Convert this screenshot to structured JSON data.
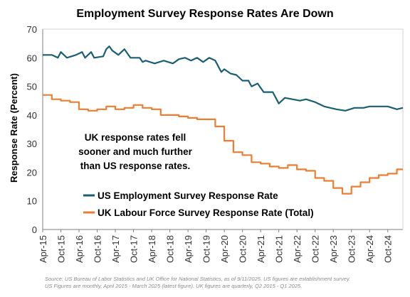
{
  "chart_data": {
    "type": "line",
    "title": "Employment Survey Response Rates Are Down",
    "ylabel": "Response Rate (Percent)",
    "xlabel": "",
    "ylim": [
      0,
      70
    ],
    "yticks": [
      0,
      10,
      20,
      30,
      40,
      50,
      60,
      70
    ],
    "grid": false,
    "x_tick_labels": [
      "Apr-15",
      "Oct-15",
      "Apr-16",
      "Oct-16",
      "Apr-17",
      "Oct-17",
      "Apr-18",
      "Oct-18",
      "Apr-19",
      "Oct-19",
      "Apr-20",
      "Oct-20",
      "Apr-21",
      "Oct-21",
      "Apr-22",
      "Oct-22",
      "Apr-23",
      "Oct-23",
      "Apr-24",
      "Oct-24"
    ],
    "annotation": [
      "UK response rates fell",
      "sooner and much further",
      "than US response rates."
    ],
    "legend": {
      "placement": "bottom-center"
    },
    "series": [
      {
        "name": "US Employment Survey Response Rate",
        "color": "#1b5f73",
        "line_style": "line",
        "points": [
          [
            "2015-04",
            61
          ],
          [
            "2015-07",
            61
          ],
          [
            "2015-09",
            60
          ],
          [
            "2015-10",
            62
          ],
          [
            "2015-12",
            60
          ],
          [
            "2016-03",
            61
          ],
          [
            "2016-05",
            62
          ],
          [
            "2016-06",
            60
          ],
          [
            "2016-08",
            62
          ],
          [
            "2016-09",
            60
          ],
          [
            "2016-12",
            60.5
          ],
          [
            "2017-01",
            63
          ],
          [
            "2017-02",
            64
          ],
          [
            "2017-03",
            62.5
          ],
          [
            "2017-05",
            61
          ],
          [
            "2017-07",
            63
          ],
          [
            "2017-09",
            60
          ],
          [
            "2017-12",
            60
          ],
          [
            "2018-01",
            58.5
          ],
          [
            "2018-02",
            59
          ],
          [
            "2018-05",
            58
          ],
          [
            "2018-08",
            59
          ],
          [
            "2018-11",
            58
          ],
          [
            "2019-01",
            59.5
          ],
          [
            "2019-03",
            60
          ],
          [
            "2019-05",
            59
          ],
          [
            "2019-07",
            60
          ],
          [
            "2019-09",
            58.5
          ],
          [
            "2019-11",
            60
          ],
          [
            "2020-01",
            59
          ],
          [
            "2020-03",
            55
          ],
          [
            "2020-04",
            56
          ],
          [
            "2020-06",
            54.5
          ],
          [
            "2020-08",
            54
          ],
          [
            "2020-10",
            52
          ],
          [
            "2020-12",
            52
          ],
          [
            "2021-01",
            50
          ],
          [
            "2021-03",
            51
          ],
          [
            "2021-05",
            48
          ],
          [
            "2021-08",
            48
          ],
          [
            "2021-10",
            44
          ],
          [
            "2021-12",
            46
          ],
          [
            "2022-05",
            45
          ],
          [
            "2022-07",
            45.5
          ],
          [
            "2022-10",
            44.5
          ],
          [
            "2023-01",
            43
          ],
          [
            "2023-05",
            42
          ],
          [
            "2023-08",
            41.5
          ],
          [
            "2023-11",
            42.5
          ],
          [
            "2024-02",
            42.5
          ],
          [
            "2024-04",
            43
          ],
          [
            "2024-07",
            43
          ],
          [
            "2024-10",
            43
          ],
          [
            "2025-01",
            42
          ],
          [
            "2025-03",
            42.5
          ]
        ]
      },
      {
        "name": "UK Labour Force Survey Response Rate (Total)",
        "color": "#ed7d31",
        "line_style": "step",
        "points": [
          [
            "2015-04",
            47
          ],
          [
            "2015-07",
            45.5
          ],
          [
            "2015-10",
            45
          ],
          [
            "2016-01",
            44.5
          ],
          [
            "2016-04",
            42
          ],
          [
            "2016-07",
            41.5
          ],
          [
            "2016-10",
            42
          ],
          [
            "2017-01",
            43
          ],
          [
            "2017-04",
            42
          ],
          [
            "2017-07",
            42.5
          ],
          [
            "2017-10",
            43.5
          ],
          [
            "2018-01",
            42.5
          ],
          [
            "2018-04",
            42
          ],
          [
            "2018-07",
            40
          ],
          [
            "2018-10",
            40
          ],
          [
            "2019-01",
            39.5
          ],
          [
            "2019-04",
            39
          ],
          [
            "2019-07",
            38.5
          ],
          [
            "2019-10",
            38.5
          ],
          [
            "2020-01",
            36
          ],
          [
            "2020-04",
            31
          ],
          [
            "2020-07",
            27
          ],
          [
            "2020-10",
            26
          ],
          [
            "2021-01",
            23.5
          ],
          [
            "2021-04",
            23
          ],
          [
            "2021-07",
            22
          ],
          [
            "2021-10",
            21.5
          ],
          [
            "2022-01",
            22.5
          ],
          [
            "2022-04",
            21
          ],
          [
            "2022-07",
            20.5
          ],
          [
            "2022-10",
            18
          ],
          [
            "2023-01",
            17
          ],
          [
            "2023-04",
            14.5
          ],
          [
            "2023-07",
            12.5
          ],
          [
            "2023-10",
            15
          ],
          [
            "2024-01",
            16.5
          ],
          [
            "2024-04",
            18
          ],
          [
            "2024-07",
            19
          ],
          [
            "2024-10",
            19.5
          ],
          [
            "2025-01",
            21
          ]
        ]
      }
    ]
  },
  "source_lines": [
    "Source: US Bureau of Labor Statistics and UK Office for National Statistics, as of 9/11/2025. US figures are establishment survey.",
    "US Figures are monthly, April 2015 - March 2025 (latest figure). UK figures are quarterly, Q2 2015 - Q1 2025."
  ]
}
